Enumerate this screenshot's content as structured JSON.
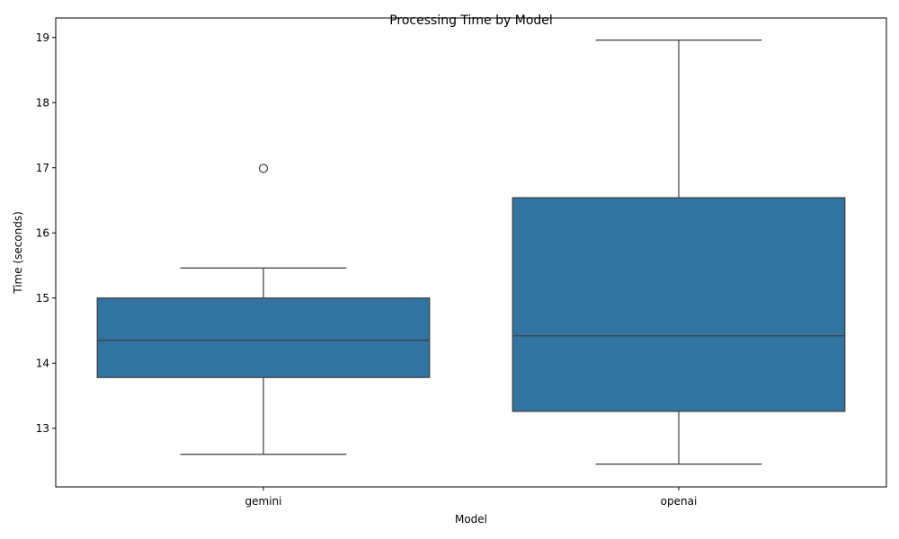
{
  "chart_data": {
    "type": "box",
    "title": "Processing Time by Model",
    "xlabel": "Model",
    "ylabel": "Time (seconds)",
    "ylim": [
      12.1,
      19.3
    ],
    "yticks": [
      "13",
      "14",
      "15",
      "16",
      "17",
      "18",
      "19"
    ],
    "grid": false,
    "box_color": "#3274a1",
    "line_color": "#3d3d3d",
    "categories": [
      "gemini",
      "openai"
    ],
    "boxes": [
      {
        "name": "gemini",
        "whisker_low": 12.6,
        "q1": 13.78,
        "median": 14.35,
        "q3": 15.0,
        "whisker_high": 15.46,
        "outliers": [
          16.99
        ]
      },
      {
        "name": "openai",
        "whisker_low": 12.45,
        "q1": 13.26,
        "median": 14.42,
        "q3": 16.54,
        "whisker_high": 18.96,
        "outliers": []
      }
    ]
  }
}
